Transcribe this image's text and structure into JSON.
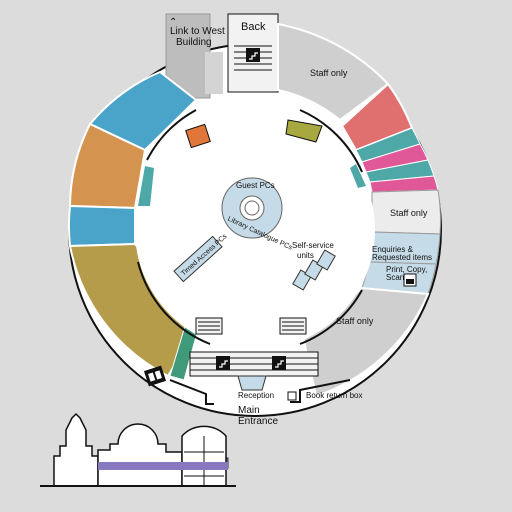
{
  "map": {
    "link_west_line1": "Link to West",
    "link_west_line2": "Building",
    "back": "Back",
    "staff_only_top": "Staff only",
    "staff_only_right": "Staff only",
    "enquiries_line1": "Enquiries &",
    "enquiries_line2": "Requested items",
    "print_line1": "Print, Copy,",
    "print_line2": "Scan",
    "staff_only_bottom": "Staff only",
    "guest_pcs": "Guest PCs",
    "library_catalogue_pcs": "Library Catalogue PCs",
    "timed_access_pcs": "Timed Access PCs",
    "self_service_line1": "Self-service",
    "self_service_line2": "units",
    "reception": "Reception",
    "book_return": "Book return box",
    "main_entrance_line1": "Main",
    "main_entrance_line2": "Entrance"
  },
  "colors": {
    "blue": "#4aa3c8",
    "orange": "#d49450",
    "olive": "#b59c4a",
    "teal": "#4fa8a8",
    "green": "#3f9a7a",
    "red": "#e07070",
    "pink": "#e05898",
    "grey": "#cfcfcf",
    "desk": "#c6dbe8"
  },
  "icons": [
    "stairs-icon",
    "lift-icon",
    "up-arrow-icon"
  ]
}
